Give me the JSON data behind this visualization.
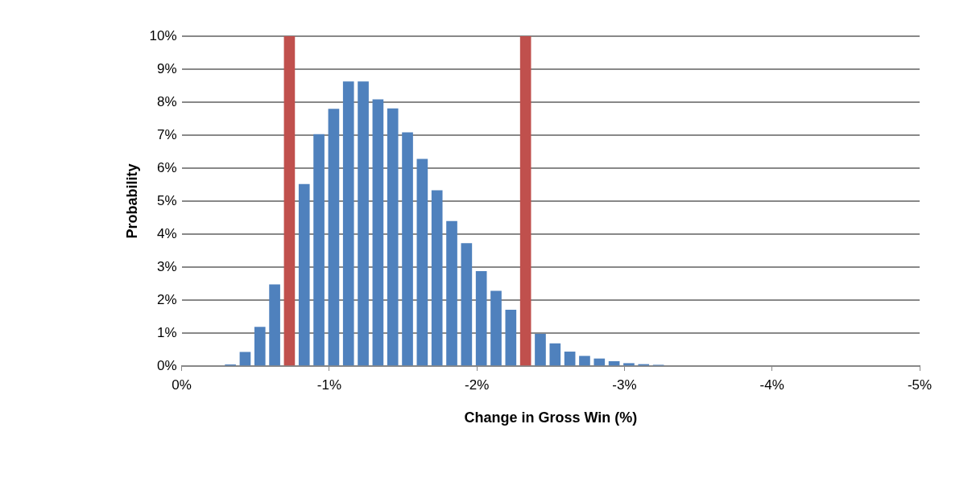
{
  "chart_data": {
    "type": "bar",
    "xlabel": "Change in Gross Win (%)",
    "ylabel": "Probability",
    "x": [
      -0.33,
      -0.43,
      -0.53,
      -0.63,
      -0.83,
      -0.93,
      -1.03,
      -1.13,
      -1.23,
      -1.33,
      -1.43,
      -1.53,
      -1.63,
      -1.73,
      -1.83,
      -1.93,
      -2.03,
      -2.13,
      -2.23,
      -2.43,
      -2.53,
      -2.63,
      -2.73,
      -2.83,
      -2.93,
      -3.03,
      -3.13,
      -3.23
    ],
    "series": [
      {
        "color": "#4f81bd",
        "values": [
          0.04,
          0.42,
          1.18,
          2.47,
          5.51,
          7.02,
          7.79,
          8.62,
          8.62,
          8.08,
          7.8,
          7.08,
          6.27,
          5.32,
          4.39,
          3.72,
          2.87,
          2.27,
          1.7,
          0.97,
          0.68,
          0.43,
          0.3,
          0.22,
          0.14,
          0.08,
          0.05,
          0.03
        ]
      },
      {
        "color": "#c0504d",
        "x": [
          -0.73,
          -2.33
        ],
        "values": [
          10,
          10
        ]
      }
    ],
    "xlim": [
      0,
      -5
    ],
    "xticks": [
      {
        "value": 0,
        "label": "0%"
      },
      {
        "value": -1,
        "label": "-1%"
      },
      {
        "value": -2,
        "label": "-2%"
      },
      {
        "value": -3,
        "label": "-3%"
      },
      {
        "value": -4,
        "label": "-4%"
      },
      {
        "value": -5,
        "label": "-5%"
      }
    ],
    "ylim": [
      0,
      10
    ],
    "yticks": [
      {
        "value": 0,
        "label": "0%"
      },
      {
        "value": 1,
        "label": "1%"
      },
      {
        "value": 2,
        "label": "2%"
      },
      {
        "value": 3,
        "label": "3%"
      },
      {
        "value": 4,
        "label": "4%"
      },
      {
        "value": 5,
        "label": "5%"
      },
      {
        "value": 6,
        "label": "6%"
      },
      {
        "value": 7,
        "label": "7%"
      },
      {
        "value": 8,
        "label": "8%"
      },
      {
        "value": 9,
        "label": "9%"
      },
      {
        "value": 10,
        "label": "10%"
      }
    ],
    "grid": "y",
    "legend": false
  }
}
